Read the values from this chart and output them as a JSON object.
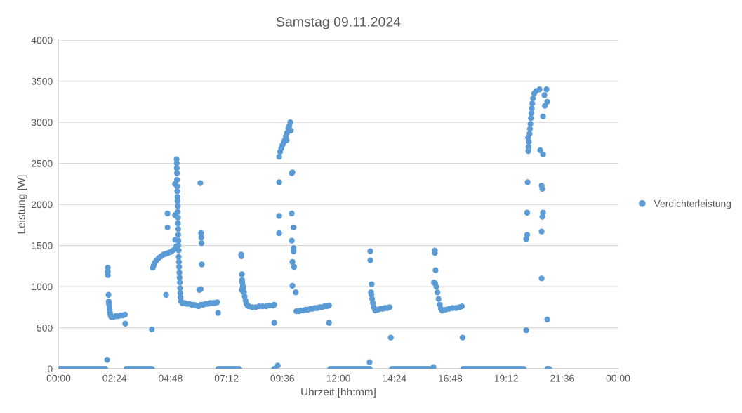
{
  "chart_data": {
    "type": "scatter",
    "title": "Samstag 09.11.2024",
    "xlabel": "Uhrzeit [hh:mm]",
    "ylabel": "Leistung [W]",
    "xlim": [
      0,
      24
    ],
    "xticks": [
      {
        "value": 0,
        "label": "00:00"
      },
      {
        "value": 2.4,
        "label": "02:24"
      },
      {
        "value": 4.8,
        "label": "04:48"
      },
      {
        "value": 7.2,
        "label": "07:12"
      },
      {
        "value": 9.6,
        "label": "09:36"
      },
      {
        "value": 12,
        "label": "12:00"
      },
      {
        "value": 14.4,
        "label": "14:24"
      },
      {
        "value": 16.8,
        "label": "16:48"
      },
      {
        "value": 19.2,
        "label": "19:12"
      },
      {
        "value": 21.6,
        "label": "21:36"
      },
      {
        "value": 24,
        "label": "00:00"
      }
    ],
    "ylim": [
      0,
      4000
    ],
    "yticks": [
      0,
      500,
      1000,
      1500,
      2000,
      2500,
      3000,
      3500,
      4000
    ],
    "grid": "y",
    "legend": "right",
    "marker": "circle",
    "series": [
      {
        "name": "Verdichterleistung",
        "color": "#5b9bd5",
        "x": [
          0,
          0.1,
          0.2,
          0.3,
          0.4,
          0.5,
          0.6,
          0.7,
          0.8,
          0.9,
          1.0,
          1.1,
          1.2,
          1.3,
          1.4,
          1.5,
          1.6,
          1.7,
          1.8,
          1.9,
          2.0,
          2.08,
          2.11,
          2.11,
          2.11,
          2.14,
          2.15,
          2.16,
          2.17,
          2.18,
          2.19,
          2.2,
          2.22,
          2.24,
          2.26,
          2.35,
          2.45,
          2.55,
          2.65,
          2.75,
          2.85,
          2.86,
          2.9,
          3.0,
          3.1,
          3.2,
          3.3,
          3.4,
          3.5,
          3.6,
          3.7,
          3.8,
          3.9,
          4.0,
          4.0,
          4.04,
          4.08,
          4.12,
          4.2,
          4.3,
          4.4,
          4.5,
          4.6,
          4.7,
          4.8,
          4.9,
          5.0,
          5.05,
          4.61,
          4.67,
          4.67,
          5.0,
          4.99,
          4.99,
          5.06,
          5.07,
          5.07,
          5.08,
          5.08,
          5.09,
          5.09,
          5.1,
          5.1,
          5.11,
          5.11,
          5.12,
          5.12,
          5.13,
          5.13,
          5.14,
          5.14,
          5.15,
          5.15,
          5.16,
          5.17,
          5.18,
          5.19,
          5.2,
          5.21,
          5.22,
          5.23,
          5.25,
          5.3,
          5.4,
          5.5,
          5.6,
          5.7,
          5.8,
          5.9,
          6.0,
          6.1,
          6.2,
          6.3,
          6.4,
          6.5,
          6.6,
          6.7,
          6.8,
          6.08,
          6.11,
          6.12,
          6.13,
          6.14,
          6.03,
          6.1,
          6.84,
          6.85,
          6.95,
          7.05,
          7.15,
          7.25,
          7.35,
          7.45,
          7.55,
          7.65,
          7.75,
          7.83,
          7.84,
          7.86,
          7.87,
          7.88,
          7.9,
          7.85,
          7.92,
          7.95,
          7.98,
          8.02,
          8.06,
          8.1,
          8.16,
          8.3,
          8.45,
          8.6,
          8.75,
          8.9,
          9.05,
          9.2,
          9.25,
          9.25,
          9.25,
          9.4,
          9.46,
          9.46,
          9.46,
          9.46,
          9.5,
          9.55,
          9.6,
          9.65,
          9.7,
          9.75,
          9.8,
          9.85,
          9.9,
          9.94,
          9.78,
          9.96,
          10.0,
          10.03,
          10.0,
          10.08,
          10.0,
          10.08,
          10.08,
          10.03,
          10.1,
          10.03,
          10.17,
          10.2,
          10.3,
          10.4,
          10.5,
          10.6,
          10.7,
          10.8,
          10.9,
          11.0,
          11.1,
          11.2,
          11.3,
          11.4,
          11.5,
          11.6,
          11.6,
          11.65,
          11.75,
          11.85,
          11.95,
          12.05,
          12.15,
          12.25,
          12.35,
          12.45,
          12.55,
          12.65,
          12.75,
          12.85,
          12.95,
          13.05,
          13.15,
          13.25,
          13.35,
          13.34,
          13.37,
          13.37,
          13.43,
          13.4,
          13.42,
          13.45,
          13.48,
          13.52,
          13.58,
          13.7,
          13.8,
          13.9,
          14.0,
          14.1,
          14.2,
          14.25,
          14.3,
          14.4,
          14.5,
          14.6,
          14.7,
          14.8,
          14.9,
          15.0,
          15.1,
          15.2,
          15.3,
          15.4,
          15.5,
          15.6,
          15.7,
          15.8,
          15.9,
          16.08,
          16.14,
          16.14,
          16.17,
          16.1,
          16.15,
          16.2,
          16.25,
          16.3,
          16.35,
          16.4,
          16.45,
          16.6,
          16.75,
          16.9,
          17.05,
          17.2,
          17.3,
          17.33,
          17.35,
          17.45,
          17.55,
          17.65,
          17.75,
          17.85,
          17.95,
          18.05,
          18.15,
          18.25,
          18.35,
          18.45,
          18.55,
          18.65,
          18.75,
          18.85,
          18.95,
          19.05,
          19.15,
          19.25,
          19.35,
          19.45,
          19.55,
          19.65,
          19.75,
          19.85,
          19.95,
          20.06,
          20.06,
          20.1,
          20.1,
          20.12,
          20.15,
          20.16,
          20.17,
          20.14,
          20.2,
          20.22,
          20.24,
          20.26,
          20.28,
          20.3,
          20.32,
          20.35,
          20.4,
          20.48,
          20.63,
          20.93,
          20.84,
          20.96,
          20.86,
          20.78,
          20.66,
          20.78,
          20.72,
          20.75,
          20.78,
          20.75,
          20.72,
          20.72,
          20.96,
          20.96,
          21.05
        ],
        "values": [
          0,
          0,
          0,
          0,
          0,
          0,
          0,
          0,
          0,
          0,
          0,
          0,
          0,
          0,
          0,
          0,
          0,
          0,
          0,
          0,
          0,
          110,
          1140,
          1180,
          1230,
          900,
          820,
          800,
          780,
          750,
          720,
          690,
          660,
          640,
          630,
          630,
          640,
          640,
          650,
          650,
          660,
          550,
          0,
          0,
          0,
          0,
          0,
          0,
          0,
          0,
          0,
          0,
          0,
          0,
          480,
          1230,
          1260,
          1290,
          1320,
          1350,
          1370,
          1390,
          1400,
          1410,
          1420,
          1440,
          1460,
          1490,
          900,
          1890,
          1720,
          1570,
          2250,
          1870,
          2550,
          2500,
          2440,
          2380,
          2300,
          2220,
          2160,
          2090,
          2040,
          1980,
          1910,
          1840,
          1770,
          1700,
          1630,
          1560,
          1500,
          1440,
          1360,
          1300,
          1240,
          1170,
          1110,
          1050,
          980,
          920,
          870,
          820,
          800,
          800,
          790,
          790,
          780,
          780,
          770,
          760,
          780,
          780,
          790,
          790,
          800,
          800,
          800,
          810,
          2260,
          1650,
          1600,
          1530,
          1270,
          960,
          970,
          680,
          0,
          0,
          0,
          0,
          0,
          0,
          0,
          0,
          0,
          0,
          1390,
          1370,
          1150,
          1080,
          1050,
          1010,
          960,
          980,
          930,
          880,
          830,
          790,
          770,
          760,
          750,
          750,
          760,
          760,
          760,
          770,
          770,
          780,
          560,
          0,
          40,
          2580,
          2270,
          1860,
          1650,
          2640,
          2680,
          2720,
          2750,
          2780,
          2830,
          2870,
          2920,
          2960,
          3000,
          2780,
          2900,
          2380,
          2390,
          1890,
          1720,
          1560,
          1470,
          1430,
          1300,
          1240,
          1010,
          930,
          700,
          700,
          710,
          710,
          720,
          720,
          730,
          730,
          740,
          740,
          750,
          750,
          760,
          760,
          770,
          560,
          0,
          0,
          0,
          0,
          0,
          0,
          0,
          0,
          0,
          0,
          0,
          0,
          0,
          0,
          0,
          0,
          0,
          0,
          80,
          1430,
          1320,
          1030,
          930,
          900,
          850,
          800,
          750,
          710,
          720,
          730,
          730,
          740,
          740,
          750,
          380,
          0,
          0,
          0,
          0,
          0,
          0,
          0,
          0,
          0,
          0,
          0,
          0,
          0,
          0,
          0,
          0,
          0,
          20,
          1440,
          1410,
          1200,
          1050,
          1040,
          1000,
          930,
          850,
          780,
          730,
          710,
          720,
          730,
          740,
          740,
          750,
          760,
          380,
          0,
          0,
          0,
          0,
          0,
          0,
          0,
          0,
          0,
          0,
          0,
          0,
          0,
          0,
          0,
          0,
          0,
          0,
          0,
          0,
          0,
          0,
          0,
          0,
          0,
          0,
          0,
          470,
          1580,
          1630,
          1900,
          2270,
          2650,
          2700,
          2760,
          2810,
          2860,
          2920,
          2980,
          3050,
          3110,
          3170,
          3230,
          3290,
          3350,
          3380,
          3400,
          3400,
          3330,
          3250,
          3200,
          3070,
          2660,
          2610,
          2230,
          2190,
          1900,
          1850,
          1670,
          1100,
          600,
          0,
          0
        ]
      }
    ]
  }
}
